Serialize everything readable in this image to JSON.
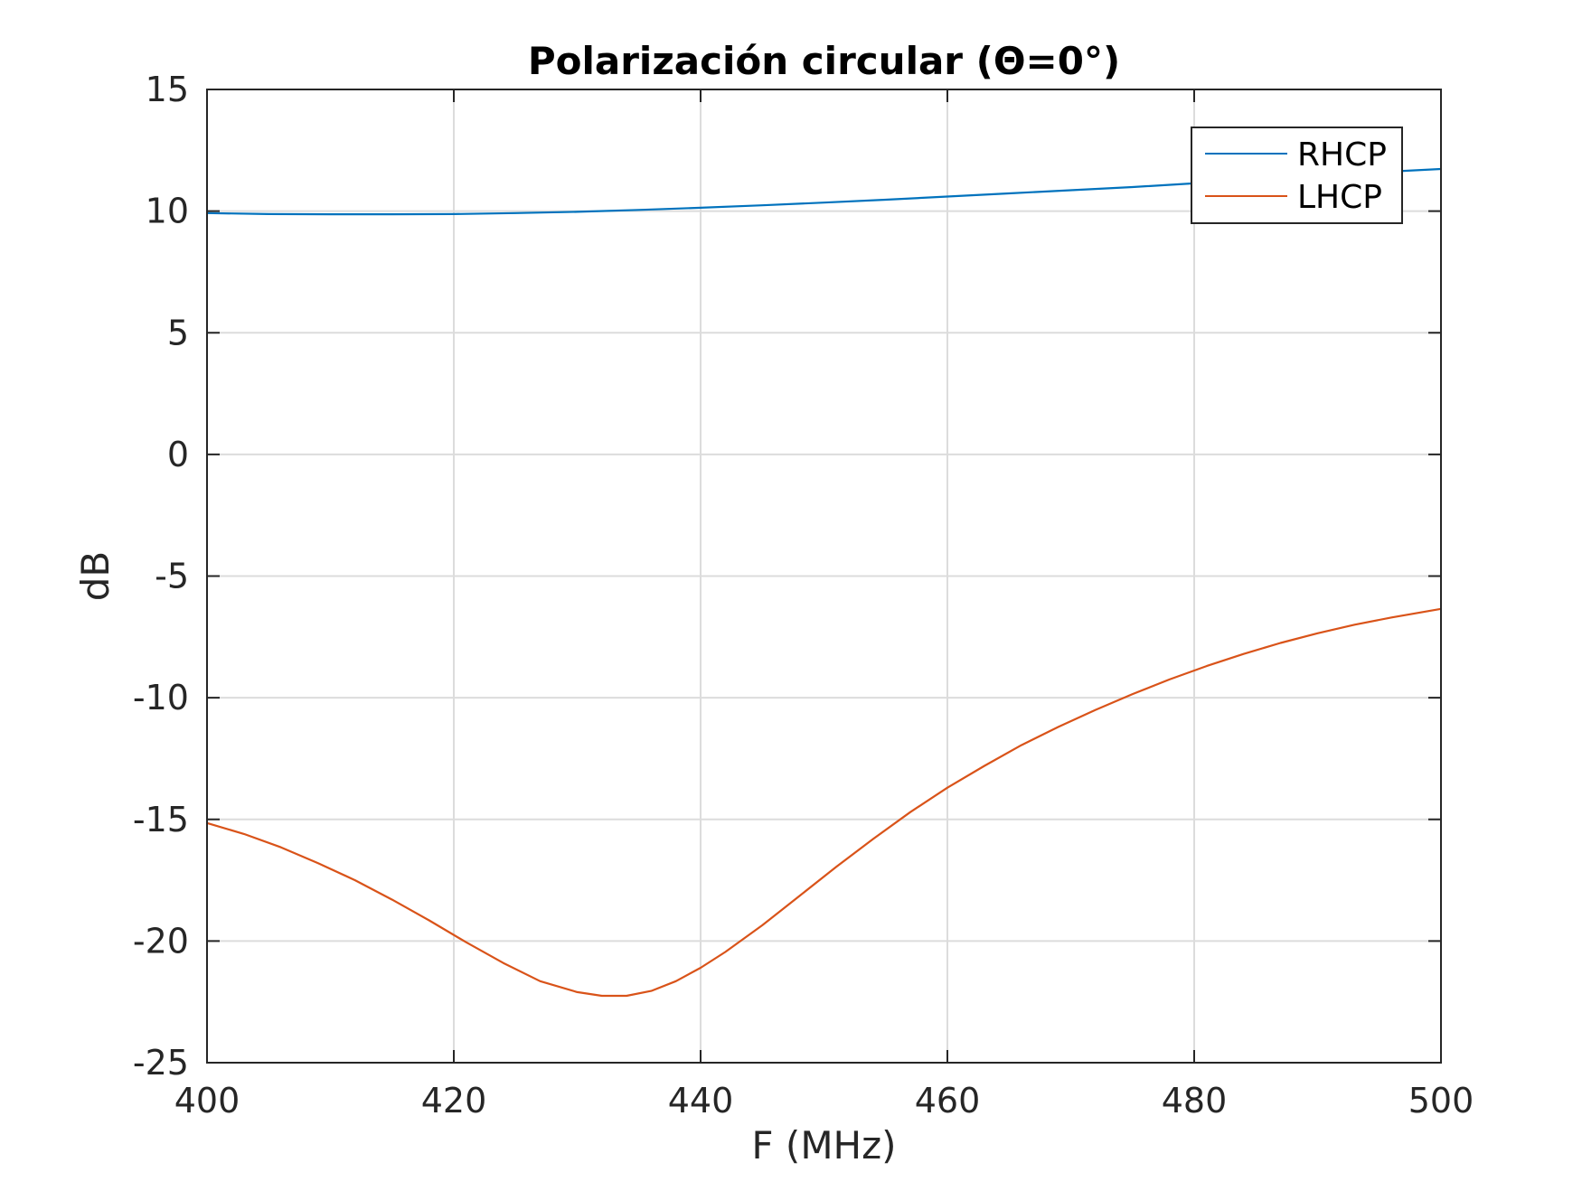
{
  "chart_data": {
    "type": "line",
    "title": "Polarización circular (Θ=0°)",
    "xlabel": "F (MHz)",
    "ylabel": "dB",
    "xlim": [
      400,
      500
    ],
    "ylim": [
      -25,
      15
    ],
    "xticks": [
      400,
      420,
      440,
      460,
      480,
      500
    ],
    "yticks": [
      15,
      10,
      5,
      0,
      -5,
      -10,
      -15,
      -20,
      -25
    ],
    "xtick_labels": [
      "400",
      "420",
      "440",
      "460",
      "480",
      "500"
    ],
    "ytick_labels": [
      "15",
      "10",
      "5",
      "0",
      "-5",
      "-10",
      "-15",
      "-20",
      "-25"
    ],
    "grid": true,
    "legend_position": "top-right",
    "series": [
      {
        "name": "RHCP",
        "color": "#0072BD",
        "x": [
          400,
          405,
          410,
          415,
          420,
          425,
          430,
          435,
          440,
          445,
          450,
          455,
          460,
          465,
          470,
          475,
          480,
          485,
          490,
          495,
          500
        ],
        "y": [
          9.92,
          9.88,
          9.87,
          9.87,
          9.88,
          9.92,
          9.97,
          10.05,
          10.14,
          10.24,
          10.35,
          10.47,
          10.6,
          10.73,
          10.86,
          10.99,
          11.14,
          11.3,
          11.45,
          11.6,
          11.73
        ]
      },
      {
        "name": "LHCP",
        "color": "#D95319",
        "x": [
          400,
          403,
          406,
          409,
          412,
          415,
          418,
          421,
          424,
          427,
          430,
          432,
          434,
          436,
          438,
          440,
          442,
          445,
          448,
          451,
          454,
          457,
          460,
          463,
          466,
          469,
          472,
          475,
          478,
          481,
          484,
          487,
          490,
          493,
          496,
          500
        ],
        "y": [
          -15.15,
          -15.6,
          -16.15,
          -16.8,
          -17.5,
          -18.3,
          -19.15,
          -20.05,
          -20.9,
          -21.65,
          -22.1,
          -22.25,
          -22.25,
          -22.05,
          -21.65,
          -21.1,
          -20.45,
          -19.35,
          -18.15,
          -16.95,
          -15.8,
          -14.7,
          -13.7,
          -12.8,
          -11.95,
          -11.2,
          -10.5,
          -9.85,
          -9.25,
          -8.7,
          -8.2,
          -7.75,
          -7.35,
          -7.0,
          -6.7,
          -6.35
        ]
      }
    ]
  }
}
